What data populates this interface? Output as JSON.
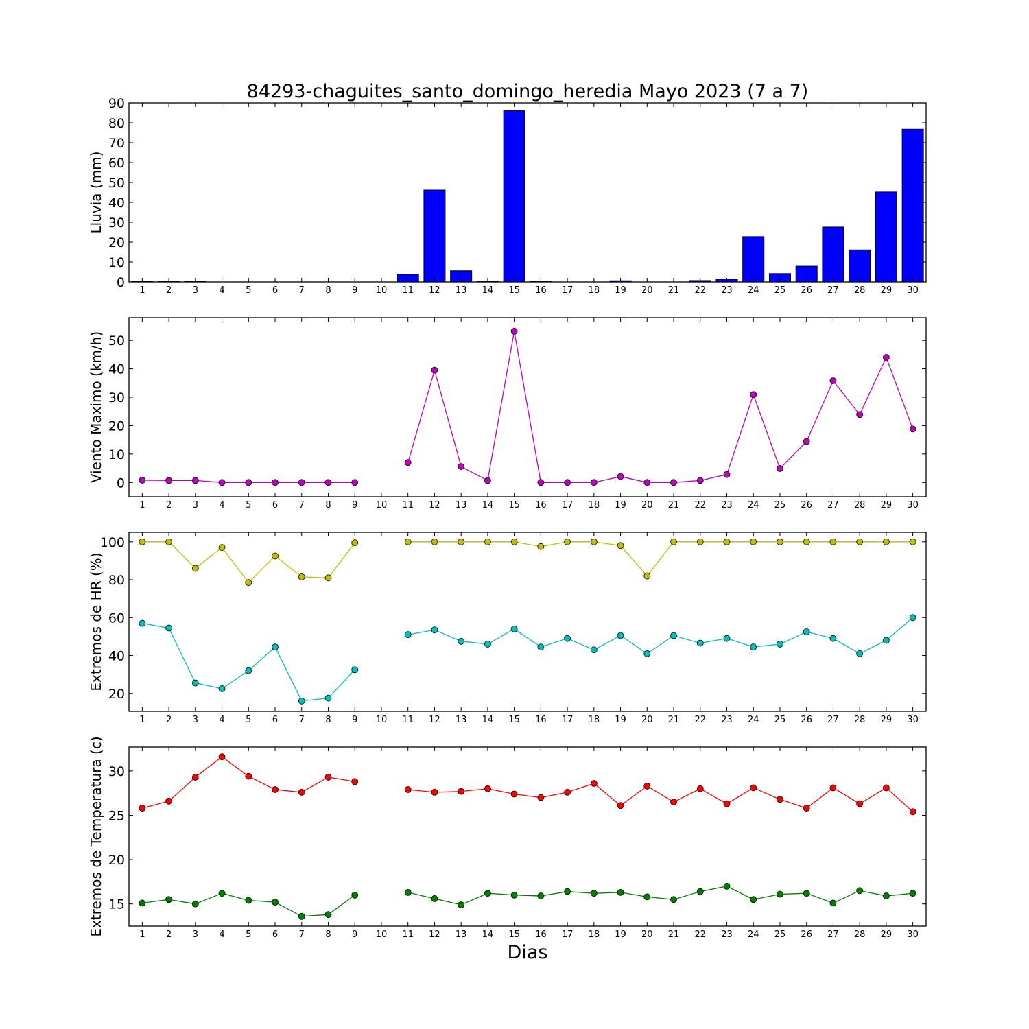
{
  "title": "84293-chaguites_santo_domingo_heredia Mayo 2023  (7 a 7)",
  "xlabel": "Dias",
  "chart_data": [
    {
      "type": "bar",
      "ylabel": "Lluvia (mm)",
      "ylim": [
        0,
        90
      ],
      "yticks": [
        0,
        10,
        20,
        30,
        40,
        50,
        60,
        70,
        80,
        90
      ],
      "xticks": [
        "1",
        "2",
        "3",
        "4",
        "5",
        "6",
        "7",
        "8",
        "9",
        "10",
        "11",
        "12",
        "13",
        "14",
        "15",
        "16",
        "17",
        "18",
        "19",
        "20",
        "21",
        "22",
        "23",
        "24",
        "25",
        "26",
        "27",
        "28",
        "29",
        "30"
      ],
      "color": "#0000ff",
      "series": [
        {
          "values": [
            0.2,
            0.2,
            0.2,
            0,
            0,
            0,
            0,
            0,
            0,
            null,
            3.8,
            46.2,
            5.6,
            0.3,
            86,
            0.2,
            0,
            0,
            0.6,
            0,
            0,
            0.7,
            1.4,
            22.8,
            4.2,
            7.9,
            27.6,
            16.1,
            45.2,
            76.8
          ]
        }
      ]
    },
    {
      "type": "line",
      "ylabel": "Viento Maximo (km/h)",
      "ylim": [
        -5,
        58
      ],
      "yticks": [
        0,
        10,
        20,
        30,
        40,
        50
      ],
      "xticks": [
        "1",
        "2",
        "3",
        "4",
        "5",
        "6",
        "7",
        "8",
        "9",
        "10",
        "11",
        "12",
        "13",
        "14",
        "15",
        "16",
        "17",
        "18",
        "19",
        "20",
        "21",
        "22",
        "23",
        "24",
        "25",
        "26",
        "27",
        "28",
        "29",
        "30"
      ],
      "series": [
        {
          "color": "#bf00bf",
          "values": [
            0.8,
            0.7,
            0.7,
            0,
            0,
            0,
            0,
            0,
            0,
            null,
            7,
            39.5,
            5.6,
            0.7,
            53.2,
            0,
            0,
            0,
            2.1,
            0,
            0,
            0.7,
            2.8,
            30.9,
            4.9,
            14.4,
            35.8,
            23.9,
            44,
            18.8
          ]
        }
      ]
    },
    {
      "type": "line",
      "ylabel": "Extremos de HR (%)",
      "ylim": [
        10.5,
        105
      ],
      "yticks": [
        20,
        40,
        60,
        80,
        100
      ],
      "xticks": [
        "1",
        "2",
        "3",
        "4",
        "5",
        "6",
        "7",
        "8",
        "9",
        "10",
        "11",
        "12",
        "13",
        "14",
        "15",
        "16",
        "17",
        "18",
        "19",
        "20",
        "21",
        "22",
        "23",
        "24",
        "25",
        "26",
        "27",
        "28",
        "29",
        "30"
      ],
      "series": [
        {
          "color": "#bfbf00",
          "values": [
            100,
            100,
            86,
            97,
            78.5,
            92.5,
            81.5,
            81,
            99.5,
            null,
            100,
            100,
            100,
            100,
            100,
            97.5,
            100,
            100,
            98,
            82,
            100,
            100,
            100,
            100,
            100,
            100,
            100,
            100,
            100,
            100
          ]
        },
        {
          "color": "#00bfbf",
          "values": [
            57,
            54.5,
            25.5,
            22.5,
            32,
            44.5,
            16,
            17.5,
            32.5,
            null,
            51,
            53.5,
            47.5,
            46,
            54,
            44.5,
            49,
            43,
            50.5,
            41,
            50.5,
            46.5,
            49,
            44.5,
            46,
            52.5,
            49,
            41,
            48,
            60
          ]
        }
      ]
    },
    {
      "type": "line",
      "ylabel": "Extremos de Temperatura (c)",
      "ylim": [
        12.5,
        32.7
      ],
      "yticks": [
        15,
        20,
        25,
        30
      ],
      "xticks": [
        "1",
        "2",
        "3",
        "4",
        "5",
        "6",
        "7",
        "8",
        "9",
        "10",
        "11",
        "12",
        "13",
        "14",
        "15",
        "16",
        "17",
        "18",
        "19",
        "20",
        "21",
        "22",
        "23",
        "24",
        "25",
        "26",
        "27",
        "28",
        "29",
        "30"
      ],
      "series": [
        {
          "color": "#ff0000",
          "values": [
            25.8,
            26.6,
            29.3,
            31.6,
            29.4,
            27.9,
            27.6,
            29.3,
            28.8,
            null,
            27.9,
            27.6,
            27.7,
            28,
            27.4,
            27,
            27.6,
            28.6,
            26.1,
            28.3,
            26.5,
            28,
            26.3,
            28.1,
            26.8,
            25.8,
            28.1,
            26.3,
            28.1,
            25.4
          ]
        },
        {
          "color": "#008000",
          "values": [
            15.1,
            15.5,
            15,
            16.2,
            15.4,
            15.2,
            13.6,
            13.8,
            16,
            null,
            16.3,
            15.6,
            14.9,
            16.2,
            16,
            15.9,
            16.4,
            16.2,
            16.3,
            15.8,
            15.5,
            16.4,
            17,
            15.5,
            16.1,
            16.2,
            15.1,
            16.5,
            15.9,
            16.2
          ]
        }
      ]
    }
  ]
}
